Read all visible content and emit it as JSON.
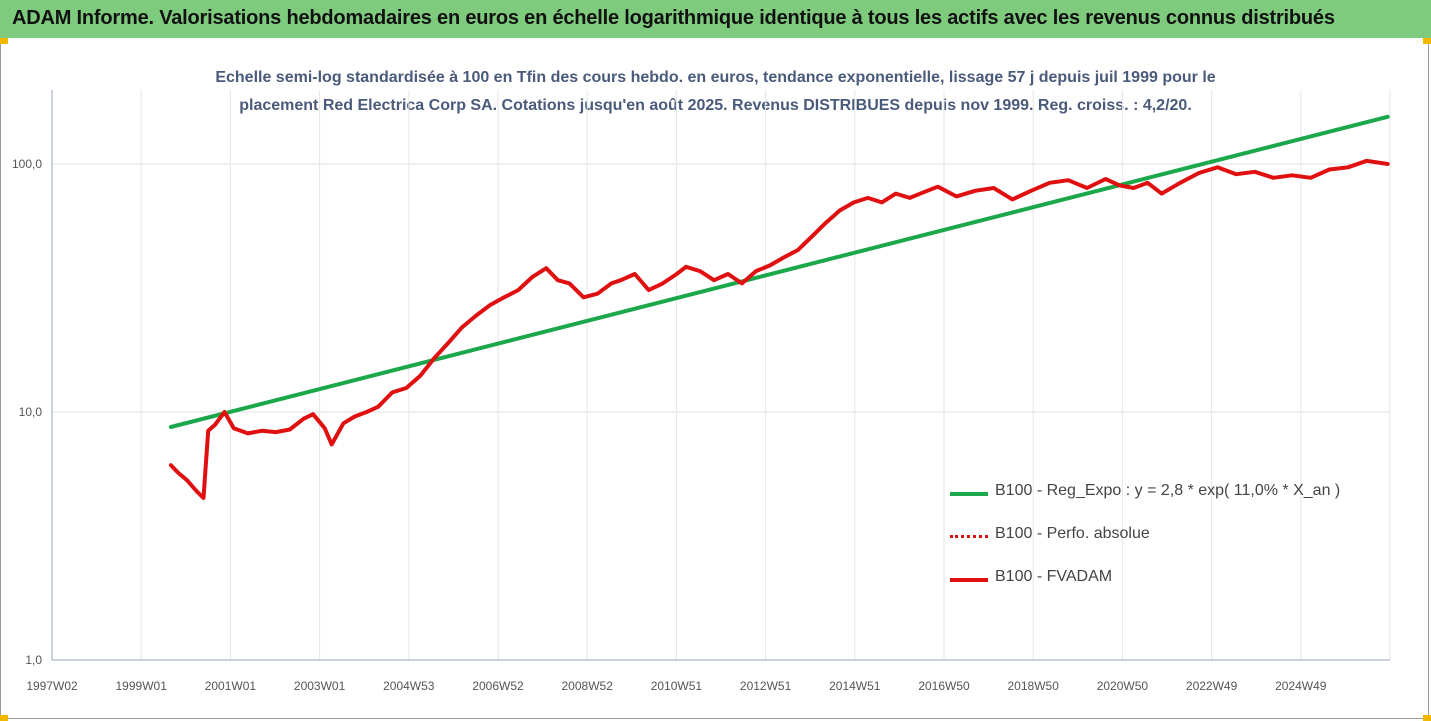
{
  "header": {
    "title": "ADAM Informe. Valorisations hebdomadaires en euros en échelle logarithmique identique à tous les actifs avec les revenus connus distribués"
  },
  "colors": {
    "header_bg": "#7ecb7e",
    "regression": "#1aa84a",
    "performance": "#e01010",
    "corner_accent": "#f2b700"
  },
  "chart_data": {
    "type": "line",
    "title_lines": [
      "Echelle semi-log standardisée à 100 en Tfin des cours hebdo. en euros, tendance exponentielle, lissage 57 j depuis juil 1999 pour le",
      "placement Red Electrica Corp SA. Cotations jusqu'en août 2025. Revenus DISTRIBUES depuis nov 1999. Reg. croiss. : 4,2/20."
    ],
    "y_scale": "log",
    "ylim": [
      1,
      200
    ],
    "y_ticks": [
      "1,0",
      "10,0",
      "100,0"
    ],
    "x_ticks": [
      "1997W02",
      "1999W01",
      "2001W01",
      "2003W01",
      "2004W53",
      "2006W52",
      "2008W52",
      "2010W51",
      "2012W51",
      "2014W51",
      "2016W50",
      "2018W50",
      "2020W50",
      "2022W49",
      "2024W49"
    ],
    "xlim": [
      1997.0,
      2025.7
    ],
    "grid": "vertical",
    "legend_position": "right-middle",
    "series": [
      {
        "name": "B100 - Reg_Expo : y = 2,8 * exp( 11,0% *  X_an )",
        "style": "solid-green",
        "x": [
          1999.55,
          2025.65
        ],
        "y": [
          8.7,
          155
        ]
      },
      {
        "name": "B100 - Perfo. absolue",
        "style": "dotted-red",
        "x": [],
        "y": []
      },
      {
        "name": "B100 - FVADAM",
        "style": "solid-red",
        "x": [
          1999.55,
          1999.7,
          1999.9,
          2000.1,
          2000.25,
          2000.35,
          2000.5,
          2000.7,
          2000.9,
          2001.2,
          2001.5,
          2001.8,
          2002.1,
          2002.4,
          2002.6,
          2002.85,
          2003.0,
          2003.25,
          2003.5,
          2003.75,
          2004.0,
          2004.3,
          2004.6,
          2004.9,
          2005.2,
          2005.5,
          2005.8,
          2006.1,
          2006.4,
          2006.7,
          2007.0,
          2007.3,
          2007.6,
          2007.85,
          2008.1,
          2008.4,
          2008.7,
          2009.0,
          2009.2,
          2009.5,
          2009.8,
          2010.1,
          2010.4,
          2010.6,
          2010.9,
          2011.2,
          2011.5,
          2011.8,
          2012.1,
          2012.4,
          2012.7,
          2013.0,
          2013.3,
          2013.6,
          2013.9,
          2014.2,
          2014.5,
          2014.8,
          2015.1,
          2015.4,
          2015.7,
          2016.0,
          2016.4,
          2016.8,
          2017.2,
          2017.6,
          2018.0,
          2018.4,
          2018.8,
          2019.2,
          2019.6,
          2019.9,
          2020.2,
          2020.5,
          2020.8,
          2021.2,
          2021.6,
          2022.0,
          2022.4,
          2022.8,
          2023.2,
          2023.6,
          2024.0,
          2024.4,
          2024.8,
          2025.2,
          2025.65
        ],
        "y": [
          6.1,
          5.7,
          5.3,
          4.8,
          4.5,
          8.4,
          8.9,
          10.0,
          8.6,
          8.2,
          8.4,
          8.3,
          8.5,
          9.4,
          9.8,
          8.6,
          7.4,
          9.0,
          9.6,
          10.0,
          10.5,
          12.0,
          12.5,
          14.0,
          16.5,
          19.0,
          22.0,
          24.5,
          27.0,
          29.0,
          31.0,
          35.0,
          38.0,
          34.0,
          33.0,
          29.0,
          30.0,
          33.0,
          34.0,
          36.0,
          31.0,
          33.0,
          36.0,
          38.5,
          37.0,
          34.0,
          36.0,
          33.0,
          37.0,
          39.0,
          42.0,
          45.0,
          51.0,
          58.0,
          65.0,
          70.0,
          73.0,
          70.0,
          76.0,
          73.0,
          77.0,
          81.0,
          74.0,
          78.0,
          80.0,
          72.0,
          78.0,
          84.0,
          86.0,
          80.0,
          87.0,
          82.0,
          80.0,
          84.0,
          76.0,
          84.0,
          92.0,
          97.0,
          91.0,
          93.0,
          88.0,
          90.0,
          88.0,
          95.0,
          97.0,
          103.0,
          100.0
        ]
      }
    ]
  }
}
